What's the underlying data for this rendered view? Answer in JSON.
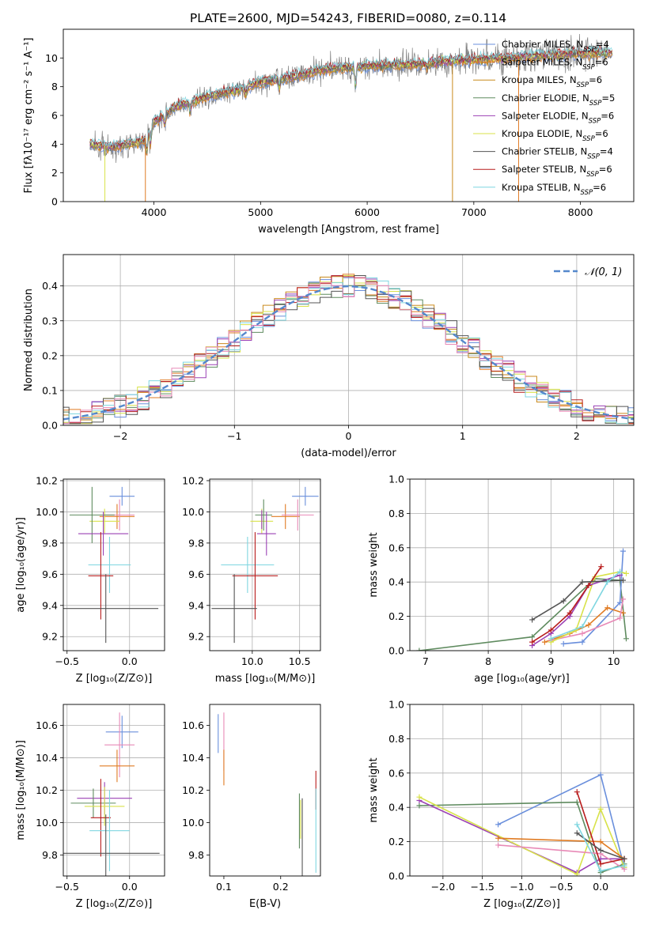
{
  "figure_title": "PLATE=2600, MJD=54243, FIBERID=0080, z=0.114",
  "colors": {
    "Chabrier MILES": "#6a8fdc",
    "Salpeter MILES": "#e07b23",
    "Kroupa MILES": "#c98a1c",
    "Chabrier ELODIE": "#5f8b5f",
    "Salpeter ELODIE": "#9b41b5",
    "Kroupa ELODIE": "#d8e24a",
    "Chabrier STELIB": "#555555",
    "Salpeter STELIB": "#b81d1d",
    "Kroupa STELIB": "#7fd6e0",
    "pink": "#e88ab7",
    "data": "#808080",
    "normal": "#5588cc"
  },
  "legend": {
    "items": [
      {
        "label": "Chabrier MILES, N",
        "sub": "SSP",
        "suffix": "=4",
        "color_key": "Chabrier MILES"
      },
      {
        "label": "Salpeter MILES, N",
        "sub": "SSP",
        "suffix": "=6",
        "color_key": "Salpeter MILES"
      },
      {
        "label": "Kroupa MILES, N",
        "sub": "SSP",
        "suffix": "=6",
        "color_key": "Kroupa MILES"
      },
      {
        "label": "Chabrier ELODIE, N",
        "sub": "SSP",
        "suffix": "=5",
        "color_key": "Chabrier ELODIE"
      },
      {
        "label": "Salpeter ELODIE, N",
        "sub": "SSP",
        "suffix": "=6",
        "color_key": "Salpeter ELODIE"
      },
      {
        "label": "Kroupa ELODIE, N",
        "sub": "SSP",
        "suffix": "=6",
        "color_key": "Kroupa ELODIE"
      },
      {
        "label": "Chabrier STELIB, N",
        "sub": "SSP",
        "suffix": "=4",
        "color_key": "Chabrier STELIB"
      },
      {
        "label": "Salpeter STELIB, N",
        "sub": "SSP",
        "suffix": "=6",
        "color_key": "Salpeter STELIB"
      },
      {
        "label": "Kroupa STELIB, N",
        "sub": "SSP",
        "suffix": "=6",
        "color_key": "Kroupa STELIB"
      }
    ]
  },
  "chart_data": [
    {
      "id": "spectrum",
      "type": "line",
      "xlabel": "wavelength [Angstrom, rest frame]",
      "ylabel": "Flux [fλ10⁻¹⁷ erg cm⁻² s⁻¹ A⁻¹]",
      "xlim": [
        3150,
        8500
      ],
      "ylim": [
        0,
        12
      ],
      "xticks": [
        4000,
        5000,
        6000,
        7000,
        8000
      ],
      "yticks": [
        0,
        2,
        4,
        6,
        8,
        10
      ],
      "grid": false,
      "legend_position": "right",
      "continuum_points": [
        [
          3400,
          4.0
        ],
        [
          3600,
          3.8
        ],
        [
          3750,
          4.0
        ],
        [
          3900,
          4.2
        ],
        [
          4000,
          5.5
        ],
        [
          4200,
          6.6
        ],
        [
          4500,
          7.3
        ],
        [
          4800,
          7.8
        ],
        [
          5000,
          8.3
        ],
        [
          5300,
          8.7
        ],
        [
          5600,
          9.2
        ],
        [
          5900,
          9.4
        ],
        [
          6200,
          9.5
        ],
        [
          6500,
          9.6
        ],
        [
          6800,
          9.8
        ],
        [
          7100,
          9.9
        ],
        [
          7500,
          10.1
        ],
        [
          8000,
          10.3
        ],
        [
          8300,
          10.4
        ]
      ]
    },
    {
      "id": "residual_histogram",
      "type": "step",
      "xlabel": "(data-model)/error",
      "ylabel": "Normed distribution",
      "xlim": [
        -2.5,
        2.5
      ],
      "ylim": [
        0,
        0.49
      ],
      "xticks": [
        -2,
        -1,
        0,
        1,
        2
      ],
      "yticks": [
        0.0,
        0.1,
        0.2,
        0.3,
        0.4
      ],
      "grid": true,
      "legend_position": "upper right",
      "normal_label": "𝒩(0, 1)"
    },
    {
      "id": "age_vs_Z",
      "type": "errorbar",
      "xlabel": "Z [log₁₀(Z/Z⊙)]",
      "ylabel": "age  [log₁₀(age/yr)]",
      "xlim": [
        -0.53,
        0.28
      ],
      "ylim": [
        9.11,
        10.21
      ],
      "xticks": [
        -0.5,
        0.0
      ],
      "yticks": [
        9.2,
        9.4,
        9.6,
        9.8,
        10.0,
        10.2
      ],
      "grid": true,
      "points": [
        {
          "s": "Chabrier MILES",
          "x": -0.06,
          "xerr": 0.1,
          "y": 10.1,
          "yerr": 0.06
        },
        {
          "s": "Salpeter MILES",
          "x": -0.1,
          "xerr": 0.14,
          "y": 9.97,
          "yerr": 0.08
        },
        {
          "s": "pink",
          "x": -0.08,
          "xerr": 0.12,
          "y": 9.98,
          "yerr": 0.1
        },
        {
          "s": "Kroupa ELODIE",
          "x": -0.2,
          "xerr": 0.12,
          "y": 9.94,
          "yerr": 0.08
        },
        {
          "s": "Chabrier ELODIE",
          "x": -0.3,
          "xerr": 0.18,
          "y": 9.98,
          "yerr": 0.18
        },
        {
          "s": "Salpeter ELODIE",
          "x": -0.21,
          "xerr": 0.2,
          "y": 9.86,
          "yerr": 0.14
        },
        {
          "s": "Kroupa STELIB",
          "x": -0.16,
          "xerr": 0.17,
          "y": 9.66,
          "yerr": 0.18
        },
        {
          "s": "Salpeter STELIB",
          "x": -0.23,
          "xerr": 0.1,
          "y": 9.59,
          "yerr": 0.28
        },
        {
          "s": "Chabrier STELIB",
          "x": -0.19,
          "xerr": 0.42,
          "y": 9.38,
          "yerr": 0.22
        }
      ]
    },
    {
      "id": "age_vs_mass",
      "type": "errorbar",
      "xlabel": "mass [log₁₀(M/M⊙)]",
      "ylabel": "",
      "xlim": [
        9.55,
        10.72
      ],
      "ylim": [
        9.11,
        10.21
      ],
      "xticks": [
        10.0,
        10.5
      ],
      "yticks": [
        9.2,
        9.4,
        9.6,
        9.8,
        10.0,
        10.2
      ],
      "grid": true,
      "points": [
        {
          "s": "Chabrier MILES",
          "x": 10.56,
          "xerr": 0.14,
          "y": 10.1,
          "yerr": 0.06
        },
        {
          "s": "Salpeter MILES",
          "x": 10.35,
          "xerr": 0.15,
          "y": 9.97,
          "yerr": 0.08
        },
        {
          "s": "pink",
          "x": 10.48,
          "xerr": 0.17,
          "y": 9.98,
          "yerr": 0.1
        },
        {
          "s": "Kroupa ELODIE",
          "x": 10.1,
          "xerr": 0.12,
          "y": 9.94,
          "yerr": 0.08
        },
        {
          "s": "Chabrier ELODIE",
          "x": 10.12,
          "xerr": 0.09,
          "y": 9.98,
          "yerr": 0.1
        },
        {
          "s": "Salpeter ELODIE",
          "x": 10.15,
          "xerr": 0.1,
          "y": 9.86,
          "yerr": 0.14
        },
        {
          "s": "Kroupa STELIB",
          "x": 9.95,
          "xerr": 0.28,
          "y": 9.66,
          "yerr": 0.18
        },
        {
          "s": "Salpeter STELIB",
          "x": 10.03,
          "xerr": 0.24,
          "y": 9.59,
          "yerr": 0.28
        },
        {
          "s": "Chabrier STELIB",
          "x": 9.81,
          "xerr": 0.24,
          "y": 9.38,
          "yerr": 0.22
        },
        {
          "s": "Salpeter ELODIE",
          "x": 10.1,
          "xerr": 0.0,
          "y": 9.95,
          "yerr": 0.06
        }
      ]
    },
    {
      "id": "mass_weight_vs_age",
      "type": "line",
      "xlabel": "age  [log₁₀(age/yr)]",
      "ylabel": "mass weight",
      "xlim": [
        6.75,
        10.32
      ],
      "ylim": [
        0,
        1
      ],
      "xticks": [
        7,
        8,
        9,
        10
      ],
      "yticks": [
        0.0,
        0.2,
        0.4,
        0.6,
        0.8,
        1.0
      ],
      "grid": true,
      "series": [
        {
          "s": "Chabrier ELODIE",
          "x": [
            6.9,
            8.7,
            9.7,
            10.1,
            10.2
          ],
          "y": [
            0.0,
            0.08,
            0.42,
            0.41,
            0.07
          ]
        },
        {
          "s": "Chabrier MILES",
          "x": [
            9.2,
            9.5,
            10.1,
            10.15
          ],
          "y": [
            0.04,
            0.05,
            0.28,
            0.58
          ]
        },
        {
          "s": "Salpeter MILES",
          "x": [
            8.9,
            9.3,
            9.6,
            9.9,
            10.15
          ],
          "y": [
            0.05,
            0.1,
            0.15,
            0.25,
            0.22
          ]
        },
        {
          "s": "pink",
          "x": [
            9.0,
            9.5,
            10.1,
            10.15
          ],
          "y": [
            0.06,
            0.1,
            0.19,
            0.3
          ]
        },
        {
          "s": "Kroupa ELODIE",
          "x": [
            9.0,
            9.4,
            9.7,
            10.1,
            10.2
          ],
          "y": [
            0.05,
            0.12,
            0.43,
            0.46,
            0.45
          ]
        },
        {
          "s": "Salpeter ELODIE",
          "x": [
            8.7,
            9.0,
            9.3,
            9.6,
            10.1
          ],
          "y": [
            0.03,
            0.1,
            0.2,
            0.38,
            0.44
          ]
        },
        {
          "s": "Salpeter STELIB",
          "x": [
            8.7,
            9.0,
            9.3,
            9.6,
            9.8
          ],
          "y": [
            0.05,
            0.12,
            0.22,
            0.38,
            0.49
          ]
        },
        {
          "s": "Chabrier STELIB",
          "x": [
            8.7,
            9.2,
            9.5,
            10.15
          ],
          "y": [
            0.18,
            0.29,
            0.4,
            0.41
          ]
        },
        {
          "s": "Kroupa STELIB",
          "x": [
            9.0,
            9.5,
            9.9,
            10.1
          ],
          "y": [
            0.07,
            0.14,
            0.4,
            0.46
          ]
        }
      ]
    },
    {
      "id": "mass_vs_Z",
      "type": "errorbar",
      "xlabel": "Z [log₁₀(Z/Z⊙)]",
      "ylabel": "mass [log₁₀(M/M⊙)]",
      "xlim": [
        -0.53,
        0.28
      ],
      "ylim": [
        9.67,
        10.73
      ],
      "xticks": [
        -0.5,
        0.0
      ],
      "yticks": [
        9.8,
        10.0,
        10.2,
        10.4,
        10.6
      ],
      "grid": true,
      "points": [
        {
          "s": "Chabrier MILES",
          "x": -0.06,
          "xerr": 0.13,
          "y": 10.56,
          "yerr": 0.1
        },
        {
          "s": "pink",
          "x": -0.08,
          "xerr": 0.12,
          "y": 10.48,
          "yerr": 0.2
        },
        {
          "s": "Salpeter MILES",
          "x": -0.1,
          "xerr": 0.14,
          "y": 10.35,
          "yerr": 0.1
        },
        {
          "s": "Salpeter ELODIE",
          "x": -0.2,
          "xerr": 0.22,
          "y": 10.15,
          "yerr": 0.1
        },
        {
          "s": "Chabrier ELODIE",
          "x": -0.29,
          "xerr": 0.18,
          "y": 10.12,
          "yerr": 0.09
        },
        {
          "s": "Kroupa ELODIE",
          "x": -0.2,
          "xerr": 0.16,
          "y": 10.1,
          "yerr": 0.12
        },
        {
          "s": "Salpeter STELIB",
          "x": -0.23,
          "xerr": 0.08,
          "y": 10.03,
          "yerr": 0.24
        },
        {
          "s": "Kroupa STELIB",
          "x": -0.16,
          "xerr": 0.16,
          "y": 9.95,
          "yerr": 0.25
        },
        {
          "s": "Chabrier STELIB",
          "x": -0.19,
          "xerr": 0.43,
          "y": 9.81,
          "yerr": 0.24
        }
      ]
    },
    {
      "id": "mass_vs_ebv",
      "type": "errorbar",
      "xlabel": "E(B-V)",
      "ylabel": "",
      "xlim": [
        0.075,
        0.27
      ],
      "ylim": [
        9.67,
        10.73
      ],
      "xticks": [
        0.1,
        0.2
      ],
      "yticks": [
        9.8,
        10.0,
        10.2,
        10.4,
        10.6
      ],
      "grid": false,
      "points": [
        {
          "s": "Chabrier MILES",
          "x": 0.09,
          "xerr": 0,
          "y": 10.55,
          "yerr": 0.12
        },
        {
          "s": "pink",
          "x": 0.1,
          "xerr": 0,
          "y": 10.5,
          "yerr": 0.18
        },
        {
          "s": "Salpeter MILES",
          "x": 0.1,
          "xerr": 0,
          "y": 10.34,
          "yerr": 0.11
        },
        {
          "s": "Chabrier ELODIE",
          "x": 0.233,
          "xerr": 0,
          "y": 10.01,
          "yerr": 0.17
        },
        {
          "s": "Kroupa ELODIE",
          "x": 0.235,
          "xerr": 0,
          "y": 10.02,
          "yerr": 0.12
        },
        {
          "s": "Chabrier STELIB",
          "x": 0.238,
          "xerr": 0,
          "y": 9.91,
          "yerr": 0.24
        },
        {
          "s": "Salpeter STELIB",
          "x": 0.262,
          "xerr": 0,
          "y": 10.2,
          "yerr": 0.12
        },
        {
          "s": "Kroupa STELIB",
          "x": 0.262,
          "xerr": 0,
          "y": 9.95,
          "yerr": 0.26
        }
      ]
    },
    {
      "id": "mass_weight_vs_Z",
      "type": "line",
      "xlabel": "Z [log₁₀(Z/Z⊙)]",
      "ylabel": "mass weight",
      "xlim": [
        -2.42,
        0.42
      ],
      "ylim": [
        0,
        1
      ],
      "xticks": [
        -2.0,
        -1.5,
        -1.0,
        -0.5,
        0.0
      ],
      "yticks": [
        0.0,
        0.2,
        0.4,
        0.6,
        0.8,
        1.0
      ],
      "grid": true,
      "series": [
        {
          "s": "Chabrier MILES",
          "x": [
            -1.3,
            0.0,
            0.3
          ],
          "y": [
            0.3,
            0.59,
            0.05
          ]
        },
        {
          "s": "Chabrier ELODIE",
          "x": [
            -2.3,
            -0.3,
            0.0,
            0.3
          ],
          "y": [
            0.41,
            0.43,
            0.02,
            0.07
          ]
        },
        {
          "s": "Salpeter ELODIE",
          "x": [
            -2.3,
            -0.3,
            0.0,
            0.3
          ],
          "y": [
            0.44,
            0.02,
            0.1,
            0.1
          ]
        },
        {
          "s": "Kroupa ELODIE",
          "x": [
            -2.3,
            -0.3,
            0.0,
            0.3
          ],
          "y": [
            0.46,
            0.01,
            0.39,
            0.05
          ]
        },
        {
          "s": "Salpeter MILES",
          "x": [
            -1.3,
            0.0,
            0.3
          ],
          "y": [
            0.22,
            0.2,
            0.1
          ]
        },
        {
          "s": "pink",
          "x": [
            -1.3,
            0.0,
            0.3
          ],
          "y": [
            0.18,
            0.13,
            0.04
          ]
        },
        {
          "s": "Salpeter STELIB",
          "x": [
            -0.3,
            0.0,
            0.3
          ],
          "y": [
            0.49,
            0.07,
            0.1
          ]
        },
        {
          "s": "Chabrier STELIB",
          "x": [
            -0.3,
            0.0,
            0.3
          ],
          "y": [
            0.25,
            0.15,
            0.1
          ]
        },
        {
          "s": "Kroupa STELIB",
          "x": [
            -0.3,
            0.0,
            0.3
          ],
          "y": [
            0.3,
            0.03,
            0.06
          ]
        }
      ]
    }
  ]
}
